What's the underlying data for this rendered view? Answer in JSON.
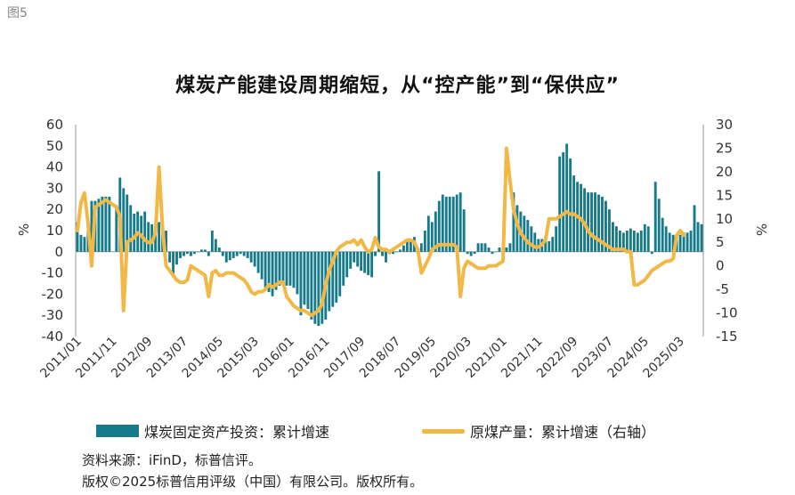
{
  "figure_label": "图5",
  "title": "煤炭产能建设周期缩短，从“控产能”到“保供应”",
  "source": "资料来源：iFinD，标普信评。",
  "copyright": "版权©2025标普信用评级（中国）有限公司。版权所有。",
  "colors": {
    "bar": "#157a8a",
    "line": "#f2b845",
    "axis": "#999999"
  },
  "legend": [
    {
      "label": "煤炭固定资产投资：累计增速",
      "kind": "bar"
    },
    {
      "label": "原煤产量：累计增速（右轴）",
      "kind": "line"
    }
  ],
  "chart_data": {
    "type": "bar+line",
    "title": "煤炭产能建设周期缩短，从“控产能”到“保供应”",
    "xlabel": "",
    "ylabel_left": "%",
    "ylabel_right": "%",
    "ylim_left": [
      -40,
      60
    ],
    "ylim_right": [
      -15,
      30
    ],
    "yticks_left": [
      "60",
      "50",
      "40",
      "30",
      "20",
      "10",
      "0",
      "-10",
      "-20",
      "-30",
      "-40"
    ],
    "yticks_right": [
      "30",
      "25",
      "20",
      "15",
      "10",
      "5",
      "0",
      "-5",
      "-10",
      "-15"
    ],
    "x_tick_labels": [
      "2011/01",
      "2011/11",
      "2012/09",
      "2013/07",
      "2014/05",
      "2015/03",
      "2016/01",
      "2016/11",
      "2017/09",
      "2018/07",
      "2019/05",
      "2020/03",
      "2021/01",
      "2021/11",
      "2022/09",
      "2023/07",
      "2024/05",
      "2025/03"
    ],
    "x_start": "2011/01",
    "x_end": "2025/05",
    "series": [
      {
        "name": "煤炭固定资产投资：累计增速",
        "type": "bar",
        "axis": "left",
        "values": [
          14,
          8,
          7,
          15,
          24,
          24,
          25,
          26,
          26,
          26,
          null,
          22,
          35,
          30,
          27,
          22,
          18,
          19,
          17,
          19,
          14,
          13,
          12,
          14,
          14,
          10,
          -5,
          -12,
          -6,
          -3,
          -2,
          -1,
          -2,
          -1,
          0,
          1,
          1,
          -2,
          10,
          6,
          2,
          -2,
          -5,
          -4,
          -3,
          -2,
          -1,
          -2,
          -3,
          -5,
          -7,
          -10,
          -13,
          -17,
          -19,
          -21,
          -18,
          -16,
          -15,
          -16,
          -16,
          -17,
          -20,
          -30,
          -25,
          -27,
          -32,
          -34,
          -35,
          -34,
          -32,
          -28,
          -26,
          -24,
          -21,
          -16,
          -12,
          -8,
          -5,
          -7,
          -9,
          -10,
          -11,
          -12,
          -2,
          38,
          -2,
          -5,
          -1,
          -1,
          0,
          1,
          3,
          5,
          5,
          7,
          1,
          4,
          10,
          17,
          14,
          19,
          24,
          27,
          26,
          26,
          26,
          27,
          28,
          20,
          -1,
          -2,
          -1,
          4,
          4,
          4,
          2,
          -1,
          0,
          2,
          3,
          2,
          4,
          28,
          22,
          19,
          17,
          15,
          12,
          9,
          6,
          6,
          7,
          5,
          7,
          12,
          45,
          47,
          51,
          44,
          36,
          33,
          32,
          30,
          28,
          28,
          28,
          27,
          26,
          24,
          20,
          14,
          12,
          10,
          9,
          10,
          11,
          10,
          9,
          10,
          13,
          12,
          -1,
          33,
          25,
          16,
          12,
          9,
          8,
          6,
          8,
          9,
          9,
          10,
          22,
          14,
          13
        ]
      },
      {
        "name": "原煤产量：累计增速（右轴）",
        "type": "line",
        "axis": "right",
        "values": [
          7.5,
          13.5,
          15.5,
          9,
          0,
          12.5,
          13,
          13.5,
          14,
          13.5,
          13,
          12.5,
          10.5,
          -9.5,
          5,
          5.5,
          6,
          7,
          6.5,
          5.5,
          5,
          5,
          7,
          21,
          8,
          0,
          -1,
          -2,
          -3,
          -3.5,
          -3.5,
          -3,
          0,
          -0.5,
          -1,
          -1.5,
          -2,
          -6.5,
          -1.5,
          -1,
          -2,
          -2,
          -1.5,
          -1.5,
          -1.5,
          -2,
          -2.5,
          -3,
          -4,
          -5.5,
          -6,
          -5.5,
          -5.5,
          -5,
          -4,
          -4.5,
          -4,
          -3.5,
          -3.5,
          -6.5,
          -7.5,
          -8.5,
          -9,
          -9.5,
          -9.5,
          -10,
          -10.5,
          -10,
          -9.5,
          -8,
          -4,
          -1,
          1,
          3,
          4,
          4.5,
          5,
          5,
          5.5,
          4.5,
          5.5,
          4,
          3,
          3.5,
          6,
          4,
          3.5,
          3.5,
          3,
          3.5,
          4,
          4.5,
          5,
          5.5,
          5.5,
          5,
          3.5,
          -1.5,
          0,
          1.5,
          3.5,
          4,
          4.5,
          4.5,
          4.5,
          4.5,
          4.5,
          4,
          -6.5,
          -0.5,
          1,
          0.5,
          0,
          -0.5,
          -0.5,
          -0.5,
          0,
          0,
          0,
          0.5,
          1,
          25,
          18,
          12,
          9,
          7,
          6,
          5,
          4.5,
          4,
          4,
          4.5,
          5.5,
          10,
          10,
          10,
          10.5,
          11,
          11.5,
          11,
          11,
          10.5,
          10,
          9,
          7.5,
          6.5,
          6,
          5.5,
          5,
          4.5,
          4,
          3.5,
          3.5,
          3.5,
          3.5,
          3,
          3,
          -4,
          -4,
          -3.5,
          -3,
          -2,
          -1,
          -0.5,
          0,
          0.5,
          1,
          1,
          1.5,
          6.5,
          7.5,
          6.5
        ]
      }
    ]
  }
}
